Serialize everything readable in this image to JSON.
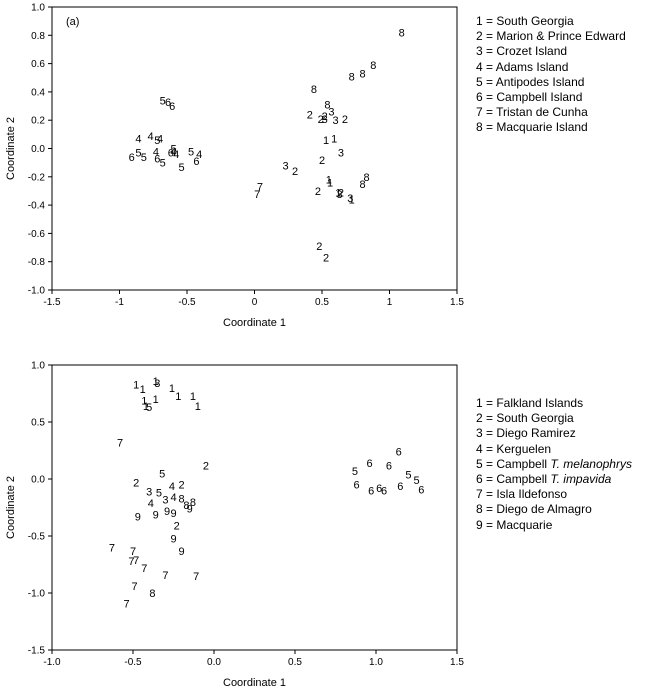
{
  "chart_data": [
    {
      "type": "scatter",
      "panel_label": "(a)",
      "xlabel": "Coordinate 1",
      "ylabel": "Coordinate 2",
      "xlim": [
        -1.5,
        1.5
      ],
      "ylim": [
        -1.0,
        1.0
      ],
      "xticks": [
        "-1.5",
        "-1",
        "-0.5",
        "0",
        "0.5",
        "1",
        "1.5"
      ],
      "yticks": [
        "-1.0",
        "-0.8",
        "-0.6",
        "-0.4",
        "-0.2",
        "0.0",
        "0.2",
        "0.4",
        "0.6",
        "0.8",
        "1.0"
      ],
      "legend": [
        {
          "text": "1 = South Georgia"
        },
        {
          "text": "2 = Marion & Prince Edward"
        },
        {
          "text": "3 = Crozet Island"
        },
        {
          "text": "4 = Adams Island"
        },
        {
          "text": "5 = Antipodes Island"
        },
        {
          "text": "6 = Campbell Island"
        },
        {
          "text": "7 = Tristan de Cunha"
        },
        {
          "text": "8 = Macquarie Island"
        }
      ],
      "points": [
        {
          "label": "1",
          "x": 0.53,
          "y": 0.06
        },
        {
          "label": "1",
          "x": 0.59,
          "y": 0.07
        },
        {
          "label": "1",
          "x": 0.55,
          "y": -0.22
        },
        {
          "label": "1",
          "x": 0.56,
          "y": -0.24
        },
        {
          "label": "1",
          "x": 0.62,
          "y": -0.31
        },
        {
          "label": "1",
          "x": 0.72,
          "y": -0.36
        },
        {
          "label": "2",
          "x": 0.41,
          "y": 0.24
        },
        {
          "label": "2",
          "x": 0.49,
          "y": 0.21
        },
        {
          "label": "2",
          "x": 0.52,
          "y": 0.23
        },
        {
          "label": "2",
          "x": 0.5,
          "y": -0.08
        },
        {
          "label": "2",
          "x": 0.47,
          "y": -0.3
        },
        {
          "label": "2",
          "x": 0.64,
          "y": -0.31
        },
        {
          "label": "2",
          "x": 0.67,
          "y": 0.21
        },
        {
          "label": "2",
          "x": 0.48,
          "y": -0.69
        },
        {
          "label": "2",
          "x": 0.53,
          "y": -0.77
        },
        {
          "label": "2",
          "x": 0.3,
          "y": -0.16
        },
        {
          "label": "3",
          "x": 0.23,
          "y": -0.12
        },
        {
          "label": "3",
          "x": 0.57,
          "y": 0.26
        },
        {
          "label": "3",
          "x": 0.6,
          "y": 0.2
        },
        {
          "label": "3",
          "x": 0.52,
          "y": 0.21
        },
        {
          "label": "3",
          "x": 0.64,
          "y": -0.03
        },
        {
          "label": "3",
          "x": 0.63,
          "y": -0.32
        },
        {
          "label": "3",
          "x": 0.71,
          "y": -0.35
        },
        {
          "label": "4",
          "x": -0.86,
          "y": 0.07
        },
        {
          "label": "4",
          "x": -0.77,
          "y": 0.09
        },
        {
          "label": "4",
          "x": -0.7,
          "y": 0.07
        },
        {
          "label": "4",
          "x": -0.73,
          "y": -0.02
        },
        {
          "label": "4",
          "x": -0.6,
          "y": -0.02
        },
        {
          "label": "4",
          "x": -0.58,
          "y": -0.04
        },
        {
          "label": "4",
          "x": -0.41,
          "y": -0.04
        },
        {
          "label": "5",
          "x": -0.68,
          "y": 0.34
        },
        {
          "label": "5",
          "x": -0.86,
          "y": -0.03
        },
        {
          "label": "5",
          "x": -0.82,
          "y": -0.06
        },
        {
          "label": "5",
          "x": -0.72,
          "y": 0.06
        },
        {
          "label": "5",
          "x": -0.6,
          "y": 0.0
        },
        {
          "label": "5",
          "x": -0.68,
          "y": -0.1
        },
        {
          "label": "5",
          "x": -0.54,
          "y": -0.13
        },
        {
          "label": "5",
          "x": -0.47,
          "y": -0.02
        },
        {
          "label": "6",
          "x": -0.64,
          "y": 0.33
        },
        {
          "label": "6",
          "x": -0.61,
          "y": 0.3
        },
        {
          "label": "6",
          "x": -0.91,
          "y": -0.06
        },
        {
          "label": "6",
          "x": -0.62,
          "y": -0.03
        },
        {
          "label": "6",
          "x": -0.43,
          "y": -0.09
        },
        {
          "label": "6",
          "x": -0.72,
          "y": -0.07
        },
        {
          "label": "7",
          "x": 0.04,
          "y": -0.27
        },
        {
          "label": "7",
          "x": 0.02,
          "y": -0.32
        },
        {
          "label": "8",
          "x": 1.09,
          "y": 0.82
        },
        {
          "label": "8",
          "x": 0.88,
          "y": 0.59
        },
        {
          "label": "8",
          "x": 0.8,
          "y": 0.53
        },
        {
          "label": "8",
          "x": 0.72,
          "y": 0.51
        },
        {
          "label": "8",
          "x": 0.44,
          "y": 0.42
        },
        {
          "label": "8",
          "x": 0.54,
          "y": 0.31
        },
        {
          "label": "8",
          "x": 0.83,
          "y": -0.2
        },
        {
          "label": "8",
          "x": 0.8,
          "y": -0.25
        }
      ]
    },
    {
      "type": "scatter",
      "xlabel": "Coordinate 1",
      "ylabel": "Coordinate 2",
      "xlim": [
        -1.0,
        1.5
      ],
      "ylim": [
        -1.5,
        1.0
      ],
      "xticks": [
        "-1.0",
        "-0.5",
        "0.0",
        "0.5",
        "1.0",
        "1.5"
      ],
      "yticks": [
        "-1.5",
        "-1.0",
        "-0.5",
        "0.0",
        "0.5",
        "1.0"
      ],
      "legend": [
        {
          "text": "1 = Falkland Islands"
        },
        {
          "text": "2 = South Georgia"
        },
        {
          "text": "3 = Diego Ramirez"
        },
        {
          "text": "4 = Kerguelen"
        },
        {
          "prefix": "5 = Campbell ",
          "italic": "T. melanophrys"
        },
        {
          "prefix": "6 = Campbell ",
          "italic": "T. impavida"
        },
        {
          "text": "7 = Isla Ildefonso"
        },
        {
          "text": "8 = Diego de Almagro"
        },
        {
          "text": "9 = Macquarie"
        }
      ],
      "points": [
        {
          "label": "1",
          "x": -0.48,
          "y": 0.83
        },
        {
          "label": "1",
          "x": -0.44,
          "y": 0.79
        },
        {
          "label": "1",
          "x": -0.36,
          "y": 0.86
        },
        {
          "label": "1",
          "x": -0.26,
          "y": 0.8
        },
        {
          "label": "1",
          "x": -0.43,
          "y": 0.69
        },
        {
          "label": "1",
          "x": -0.36,
          "y": 0.7
        },
        {
          "label": "1",
          "x": -0.42,
          "y": 0.64
        },
        {
          "label": "1",
          "x": -0.22,
          "y": 0.73
        },
        {
          "label": "1",
          "x": -0.13,
          "y": 0.73
        },
        {
          "label": "1",
          "x": -0.1,
          "y": 0.64
        },
        {
          "label": "2",
          "x": -0.05,
          "y": 0.12
        },
        {
          "label": "2",
          "x": -0.48,
          "y": -0.03
        },
        {
          "label": "2",
          "x": -0.2,
          "y": -0.05
        },
        {
          "label": "2",
          "x": -0.23,
          "y": -0.41
        },
        {
          "label": "3",
          "x": -0.35,
          "y": 0.84
        },
        {
          "label": "3",
          "x": -0.4,
          "y": -0.11
        },
        {
          "label": "3",
          "x": -0.3,
          "y": -0.18
        },
        {
          "label": "4",
          "x": -0.26,
          "y": -0.06
        },
        {
          "label": "4",
          "x": -0.39,
          "y": -0.21
        },
        {
          "label": "4",
          "x": -0.25,
          "y": -0.16
        },
        {
          "label": "5",
          "x": -0.4,
          "y": 0.63
        },
        {
          "label": "5",
          "x": -0.32,
          "y": 0.05
        },
        {
          "label": "5",
          "x": -0.34,
          "y": -0.12
        },
        {
          "label": "5",
          "x": 0.87,
          "y": 0.07
        },
        {
          "label": "5",
          "x": 1.2,
          "y": 0.04
        },
        {
          "label": "5",
          "x": 1.25,
          "y": -0.01
        },
        {
          "label": "6",
          "x": 1.14,
          "y": 0.24
        },
        {
          "label": "6",
          "x": 0.96,
          "y": 0.14
        },
        {
          "label": "6",
          "x": 1.08,
          "y": 0.12
        },
        {
          "label": "6",
          "x": 0.88,
          "y": -0.05
        },
        {
          "label": "6",
          "x": 0.97,
          "y": -0.1
        },
        {
          "label": "6",
          "x": 1.02,
          "y": -0.08
        },
        {
          "label": "6",
          "x": 1.05,
          "y": -0.1
        },
        {
          "label": "6",
          "x": 1.15,
          "y": -0.06
        },
        {
          "label": "6",
          "x": 1.28,
          "y": -0.09
        },
        {
          "label": "7",
          "x": -0.58,
          "y": 0.32
        },
        {
          "label": "7",
          "x": -0.63,
          "y": -0.6
        },
        {
          "label": "7",
          "x": -0.5,
          "y": -0.63
        },
        {
          "label": "7",
          "x": -0.48,
          "y": -0.71
        },
        {
          "label": "7",
          "x": -0.51,
          "y": -0.72
        },
        {
          "label": "7",
          "x": -0.43,
          "y": -0.78
        },
        {
          "label": "7",
          "x": -0.3,
          "y": -0.84
        },
        {
          "label": "7",
          "x": -0.11,
          "y": -0.85
        },
        {
          "label": "7",
          "x": -0.49,
          "y": -0.94
        },
        {
          "label": "7",
          "x": -0.54,
          "y": -1.09
        },
        {
          "label": "8",
          "x": -0.2,
          "y": -0.17
        },
        {
          "label": "8",
          "x": -0.13,
          "y": -0.2
        },
        {
          "label": "8",
          "x": -0.17,
          "y": -0.23
        },
        {
          "label": "8",
          "x": -0.38,
          "y": -1.0
        },
        {
          "label": "9",
          "x": -0.47,
          "y": -0.33
        },
        {
          "label": "9",
          "x": -0.29,
          "y": -0.28
        },
        {
          "label": "9",
          "x": -0.36,
          "y": -0.31
        },
        {
          "label": "9",
          "x": -0.25,
          "y": -0.52
        },
        {
          "label": "9",
          "x": -0.2,
          "y": -0.63
        },
        {
          "label": "9",
          "x": -0.15,
          "y": -0.26
        },
        {
          "label": "9",
          "x": -0.25,
          "y": -0.3
        }
      ]
    }
  ]
}
